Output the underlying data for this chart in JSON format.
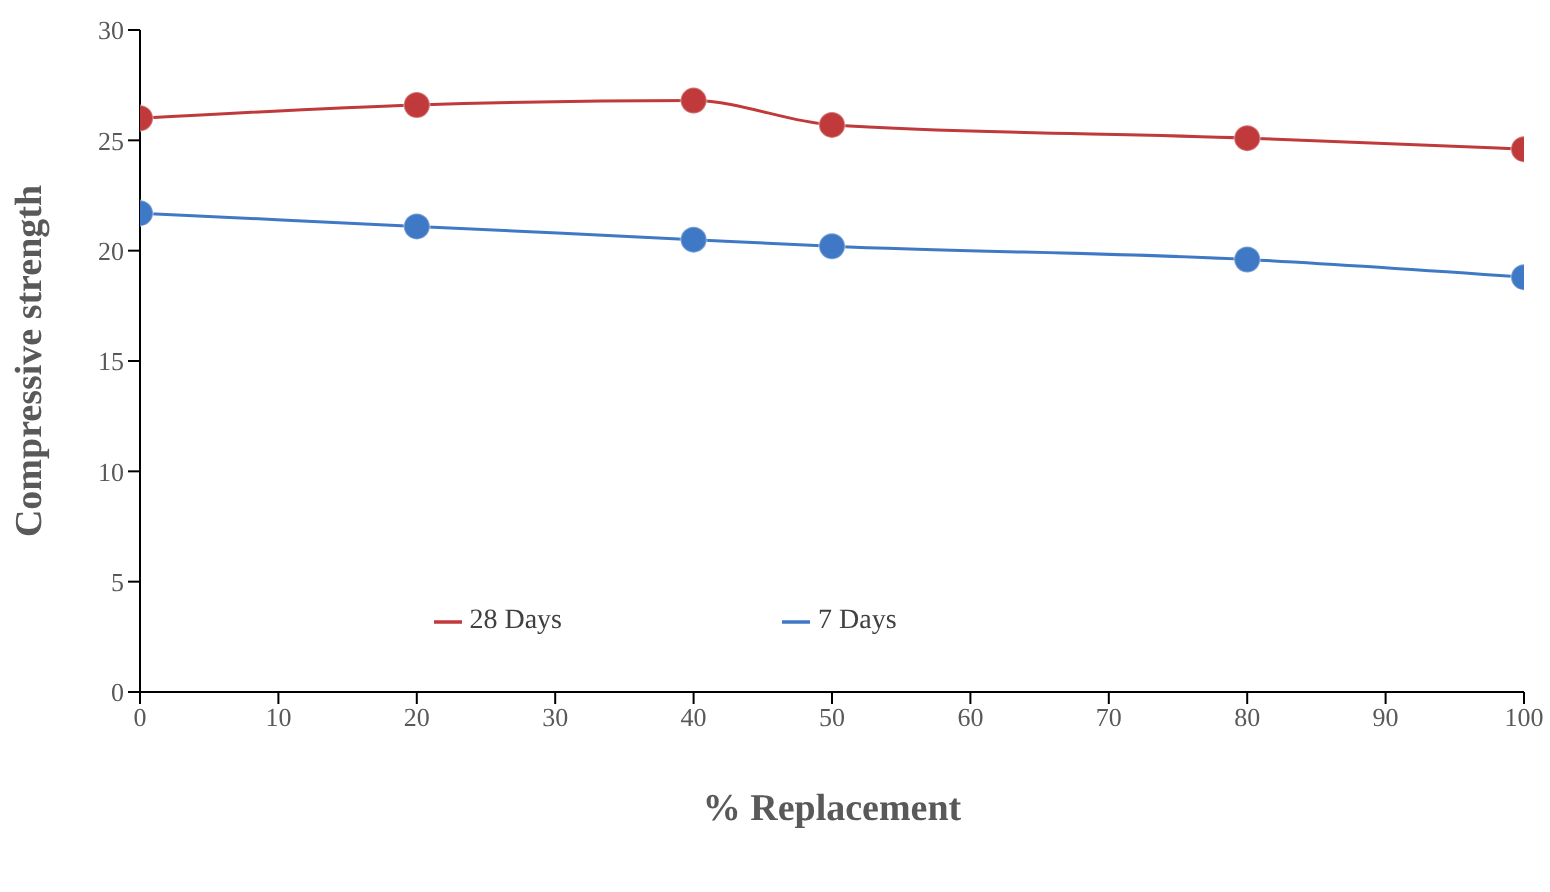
{
  "chart_data": {
    "type": "line",
    "xlabel": "% Replacement",
    "ylabel": "Compressive strength",
    "x": [
      0,
      20,
      40,
      50,
      80,
      100
    ],
    "series": [
      {
        "name": "7 Days",
        "color": "#3f78c4",
        "values": [
          21.7,
          21.1,
          20.5,
          20.2,
          19.6,
          18.8
        ]
      },
      {
        "name": "28 Days",
        "color": "#c0393b",
        "values": [
          26.0,
          26.6,
          26.8,
          25.7,
          25.1,
          24.6
        ]
      }
    ],
    "xlim": [
      0,
      100
    ],
    "xticks": [
      0,
      10,
      20,
      30,
      40,
      50,
      60,
      70,
      80,
      90,
      100
    ],
    "ylim": [
      0,
      30
    ],
    "yticks": [
      0,
      5,
      10,
      15,
      20,
      25,
      30
    ],
    "grid": false,
    "legend": "bottom",
    "marker": "circle",
    "line_style": "solid"
  }
}
